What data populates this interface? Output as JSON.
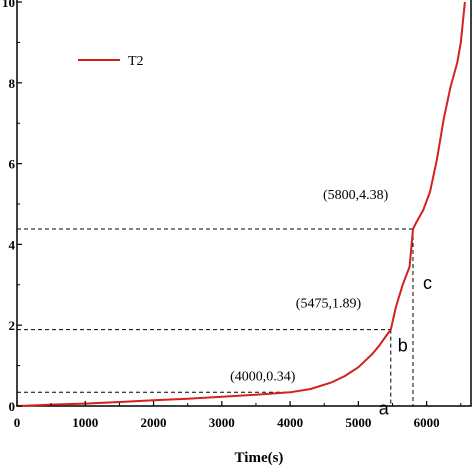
{
  "chart_data": {
    "type": "line",
    "xlabel": "Time(s)",
    "ylabel": "",
    "xlim": [
      0,
      6650
    ],
    "ylim": [
      0,
      10.05
    ],
    "x_ticks": [
      0,
      1000,
      2000,
      3000,
      4000,
      5000,
      6000
    ],
    "x_tick_labels": [
      "0",
      "1000",
      "2000",
      "3000",
      "4000",
      "5000",
      "6000"
    ],
    "y_ticks": [
      0,
      2,
      4,
      6,
      8,
      10
    ],
    "y_tick_labels": [
      "0",
      "2",
      "4",
      "6",
      "8",
      "10"
    ],
    "legend": {
      "position": "top-left",
      "entries": [
        "T2"
      ]
    },
    "grid": false,
    "series": [
      {
        "name": "T2",
        "color": "#d42020",
        "x": [
          0,
          300,
          600,
          1000,
          1500,
          2000,
          2500,
          3000,
          3500,
          4000,
          4300,
          4600,
          4800,
          5000,
          5200,
          5300,
          5400,
          5475,
          5550,
          5650,
          5750,
          5800,
          5850,
          5950,
          6050,
          6150,
          6250,
          6350,
          6450,
          6500,
          6560
        ],
        "y": [
          0,
          0.02,
          0.04,
          0.06,
          0.1,
          0.14,
          0.18,
          0.23,
          0.28,
          0.34,
          0.42,
          0.58,
          0.74,
          0.96,
          1.28,
          1.48,
          1.72,
          1.89,
          2.45,
          3.0,
          3.45,
          4.38,
          4.55,
          4.85,
          5.3,
          6.1,
          7.1,
          7.9,
          8.5,
          9.0,
          10.0
        ]
      }
    ],
    "reference_points": [
      {
        "x": 4000,
        "y": 0.34,
        "label": "(4000,0.34)"
      },
      {
        "x": 5475,
        "y": 1.89,
        "label": "(5475,1.89)"
      },
      {
        "x": 5800,
        "y": 4.38,
        "label": "(5800,4.38)"
      }
    ],
    "segment_labels": [
      "a",
      "b",
      "c"
    ]
  }
}
